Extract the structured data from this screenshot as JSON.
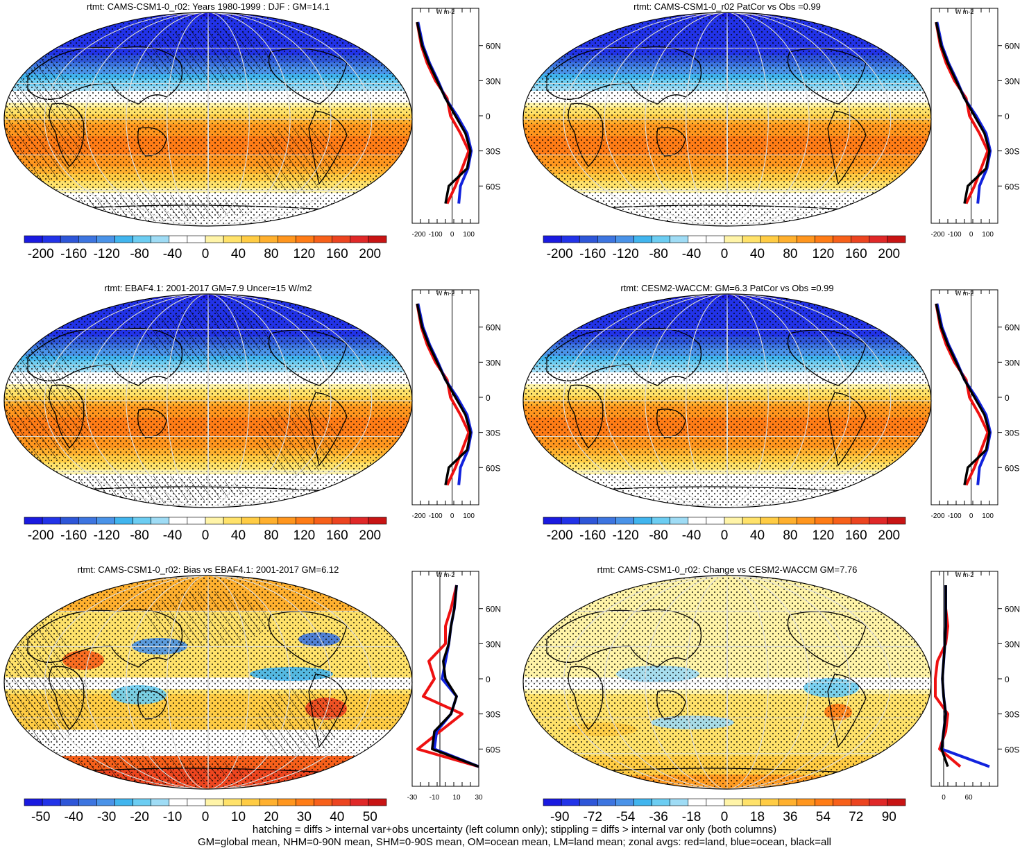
{
  "panels": [
    {
      "id": "p1",
      "title": "rtmt: CAMS-CSM1-0_r02: Years 1980-1999 : DJF : GM=14.1",
      "hatch": true,
      "kind": "clim",
      "cbar": {
        "min": -220,
        "max": 220,
        "ticks": [
          -200,
          -160,
          -120,
          -80,
          -40,
          0,
          40,
          80,
          120,
          160,
          200
        ]
      },
      "zonal": {
        "xticks": [
          "-200",
          "-100",
          "0",
          "100"
        ],
        "xmin": -240,
        "xmax": 160,
        "zero": 0
      }
    },
    {
      "id": "p2",
      "title": "rtmt: CAMS-CSM1-0_r02 PatCor vs Obs =0.99",
      "hatch": false,
      "kind": "clim",
      "cbar": {
        "min": -220,
        "max": 220,
        "ticks": [
          -200,
          -160,
          -120,
          -80,
          -40,
          0,
          40,
          80,
          120,
          160,
          200
        ]
      },
      "zonal": {
        "xticks": [
          "-200",
          "-100",
          "0",
          "100"
        ],
        "xmin": -240,
        "xmax": 160,
        "zero": 0
      }
    },
    {
      "id": "p3",
      "title": "rtmt: EBAF4.1: 2001-2017 GM=7.9 Uncer=15 W/m2",
      "hatch": true,
      "kind": "clim",
      "cbar": {
        "min": -220,
        "max": 220,
        "ticks": [
          -200,
          -160,
          -120,
          -80,
          -40,
          0,
          40,
          80,
          120,
          160,
          200
        ]
      },
      "zonal": {
        "xticks": [
          "-200",
          "-100",
          "0",
          "100"
        ],
        "xmin": -240,
        "xmax": 160,
        "zero": 0
      }
    },
    {
      "id": "p4",
      "title": "rtmt: CESM2-WACCM: GM=6.3 PatCor vs Obs =0.99",
      "hatch": false,
      "kind": "clim",
      "cbar": {
        "min": -220,
        "max": 220,
        "ticks": [
          -200,
          -160,
          -120,
          -80,
          -40,
          0,
          40,
          80,
          120,
          160,
          200
        ]
      },
      "zonal": {
        "xticks": [
          "-200",
          "-100",
          "0",
          "100"
        ],
        "xmin": -240,
        "xmax": 160,
        "zero": 0
      }
    },
    {
      "id": "p5",
      "title": "rtmt: CAMS-CSM1-0_r02: Bias vs EBAF4.1: 2001-2017 GM=6.12",
      "hatch": true,
      "kind": "bias",
      "cbar": {
        "min": -55,
        "max": 55,
        "ticks": [
          -50,
          -40,
          -30,
          -20,
          -10,
          0,
          10,
          20,
          30,
          40,
          50
        ]
      },
      "zonal": {
        "xticks": [
          "-30",
          "-10",
          "10",
          "30"
        ],
        "xmin": -30,
        "xmax": 30,
        "zero": -5
      }
    },
    {
      "id": "p6",
      "title": "rtmt: CAMS-CSM1-0_r02: Change vs CESM2-WACCM GM=7.76",
      "hatch": false,
      "kind": "change",
      "cbar": {
        "min": -99,
        "max": 99,
        "ticks": [
          -90,
          -72,
          -54,
          -36,
          -18,
          0,
          18,
          36,
          54,
          72,
          90
        ]
      },
      "zonal": {
        "xticks": [
          "0",
          "60"
        ],
        "xmin": -30,
        "xmax": 130,
        "zero": 0
      }
    }
  ],
  "zonal_unit": "W m-2",
  "lat_labels": [
    "60N",
    "30N",
    "0",
    "30S",
    "60S"
  ],
  "colors": {
    "land": "#ee1111",
    "ocean": "#1122dd",
    "all": "#000000",
    "grid": "#dddddd"
  },
  "footer": {
    "line1": "hatching = diffs > internal var+obs uncertainty (left column only); stippling = diffs > internal var only (both columns)",
    "line2": "GM=global mean, NHM=0-90N mean, SHM=0-90S mean, OM=ocean mean, LM=land mean; zonal avgs: red=land, blue=ocean, black=all"
  },
  "chart_data": [
    {
      "type": "heatmap",
      "title": "rtmt: CAMS-CSM1-0_r02: Years 1980-1999 : DJF : GM=14.1",
      "colorbar_ticks": [
        -200,
        -160,
        -120,
        -80,
        -40,
        0,
        40,
        80,
        120,
        160,
        200
      ],
      "zonal_mean": {
        "lat": [
          80,
          60,
          45,
          30,
          15,
          0,
          -15,
          -30,
          -45,
          -60,
          -75
        ],
        "all": [
          -210,
          -180,
          -140,
          -90,
          -40,
          20,
          80,
          110,
          90,
          -20,
          -40
        ],
        "land": [
          -210,
          -185,
          -150,
          -100,
          -30,
          -10,
          50,
          100,
          60,
          20,
          -30
        ],
        "ocean": [
          -205,
          -175,
          -135,
          -85,
          -40,
          30,
          90,
          115,
          95,
          50,
          40
        ]
      }
    },
    {
      "type": "heatmap",
      "title": "rtmt: CAMS-CSM1-0_r02 PatCor vs Obs =0.99",
      "colorbar_ticks": [
        -200,
        -160,
        -120,
        -80,
        -40,
        0,
        40,
        80,
        120,
        160,
        200
      ]
    },
    {
      "type": "heatmap",
      "title": "rtmt: EBAF4.1: 2001-2017 GM=7.9 Uncer=15 W/m2",
      "colorbar_ticks": [
        -200,
        -160,
        -120,
        -80,
        -40,
        0,
        40,
        80,
        120,
        160,
        200
      ]
    },
    {
      "type": "heatmap",
      "title": "rtmt: CESM2-WACCM: GM=6.3 PatCor vs Obs =0.99",
      "colorbar_ticks": [
        -200,
        -160,
        -120,
        -80,
        -40,
        0,
        40,
        80,
        120,
        160,
        200
      ]
    },
    {
      "type": "heatmap",
      "title": "rtmt: CAMS-CSM1-0_r02: Bias vs EBAF4.1: 2001-2017 GM=6.12",
      "colorbar_ticks": [
        -50,
        -40,
        -30,
        -20,
        -10,
        0,
        10,
        20,
        30,
        40,
        50
      ],
      "zonal_mean": {
        "lat": [
          80,
          60,
          45,
          30,
          15,
          0,
          -15,
          -30,
          -45,
          -60,
          -75
        ],
        "all": [
          10,
          8,
          5,
          3,
          -2,
          0,
          10,
          5,
          -10,
          -12,
          30
        ],
        "land": [
          10,
          5,
          0,
          0,
          -15,
          -10,
          -20,
          15,
          -5,
          -25,
          30
        ],
        "ocean": [
          10,
          8,
          5,
          3,
          0,
          -3,
          10,
          5,
          -8,
          -10,
          30
        ]
      }
    },
    {
      "type": "heatmap",
      "title": "rtmt: CAMS-CSM1-0_r02: Change vs CESM2-WACCM GM=7.76",
      "colorbar_ticks": [
        -90,
        -72,
        -54,
        -36,
        -18,
        0,
        18,
        36,
        54,
        72,
        90
      ],
      "zonal_mean": {
        "lat": [
          80,
          60,
          45,
          30,
          15,
          0,
          -15,
          -30,
          -45,
          -60,
          -75
        ],
        "all": [
          5,
          5,
          5,
          3,
          0,
          -3,
          0,
          5,
          0,
          -5,
          10
        ],
        "land": [
          5,
          5,
          10,
          5,
          -15,
          -20,
          -20,
          10,
          5,
          -10,
          40
        ],
        "ocean": [
          5,
          5,
          5,
          3,
          0,
          -3,
          0,
          5,
          0,
          -5,
          110
        ]
      }
    }
  ]
}
